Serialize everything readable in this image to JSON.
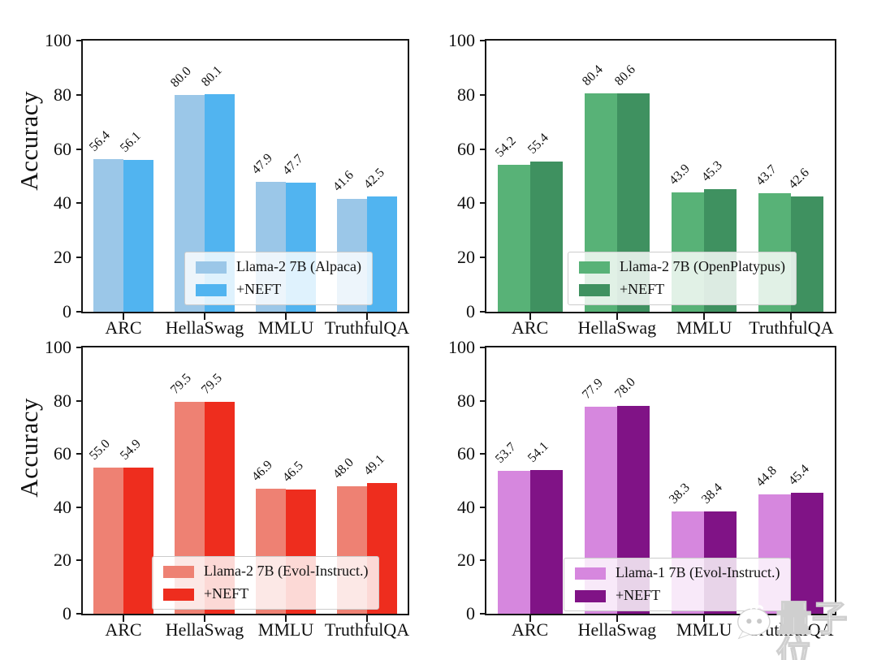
{
  "watermark": {
    "icon": "wechat-bubble",
    "text": "量子位"
  },
  "chart_data": [
    {
      "type": "bar",
      "position": "top-left",
      "title": "",
      "xlabel": "",
      "ylabel": "Accuracy",
      "ylim": [
        0,
        100
      ],
      "yticks": [
        0,
        20,
        40,
        60,
        80,
        100
      ],
      "grid": false,
      "legend_position": "lower center inside",
      "categories": [
        "ARC",
        "HellaSwag",
        "MMLU",
        "TruthfulQA"
      ],
      "series": [
        {
          "name": "Llama-2 7B (Alpaca)",
          "color": "#9BC7E8",
          "values": [
            56.4,
            80.0,
            47.9,
            41.6
          ]
        },
        {
          "name": "+NEFT",
          "color": "#51B4F0",
          "values": [
            56.1,
            80.1,
            47.7,
            42.5
          ]
        }
      ]
    },
    {
      "type": "bar",
      "position": "top-right",
      "title": "",
      "xlabel": "",
      "ylabel": "",
      "ylim": [
        0,
        100
      ],
      "yticks": [
        0,
        20,
        40,
        60,
        80,
        100
      ],
      "grid": false,
      "legend_position": "lower center inside",
      "categories": [
        "ARC",
        "HellaSwag",
        "MMLU",
        "TruthfulQA"
      ],
      "series": [
        {
          "name": "Llama-2 7B (OpenPlatypus)",
          "color": "#58B277",
          "values": [
            54.2,
            80.4,
            43.9,
            43.7
          ]
        },
        {
          "name": "+NEFT",
          "color": "#3F9160",
          "values": [
            55.4,
            80.6,
            45.3,
            42.6
          ]
        }
      ]
    },
    {
      "type": "bar",
      "position": "bottom-left",
      "title": "",
      "xlabel": "",
      "ylabel": "Accuracy",
      "ylim": [
        0,
        100
      ],
      "yticks": [
        0,
        20,
        40,
        60,
        80,
        100
      ],
      "grid": false,
      "legend_position": "lower center inside",
      "categories": [
        "ARC",
        "HellaSwag",
        "MMLU",
        "TruthfulQA"
      ],
      "series": [
        {
          "name": "Llama-2 7B (Evol-Instruct.)",
          "color": "#EE8173",
          "values": [
            55.0,
            79.5,
            46.9,
            48.0
          ]
        },
        {
          "name": "+NEFT",
          "color": "#EE2D1E",
          "values": [
            54.9,
            79.5,
            46.5,
            49.1
          ]
        }
      ]
    },
    {
      "type": "bar",
      "position": "bottom-right",
      "title": "",
      "xlabel": "",
      "ylabel": "",
      "ylim": [
        0,
        100
      ],
      "yticks": [
        0,
        20,
        40,
        60,
        80,
        100
      ],
      "grid": false,
      "legend_position": "lower center inside",
      "categories": [
        "ARC",
        "HellaSwag",
        "MMLU",
        "TruthfulQA"
      ],
      "series": [
        {
          "name": "Llama-1 7B (Evol-Instruct.)",
          "color": "#D687DE",
          "values": [
            53.7,
            77.9,
            38.3,
            44.8
          ]
        },
        {
          "name": "+NEFT",
          "color": "#801386",
          "values": [
            54.1,
            78.0,
            38.4,
            45.4
          ]
        }
      ]
    }
  ]
}
